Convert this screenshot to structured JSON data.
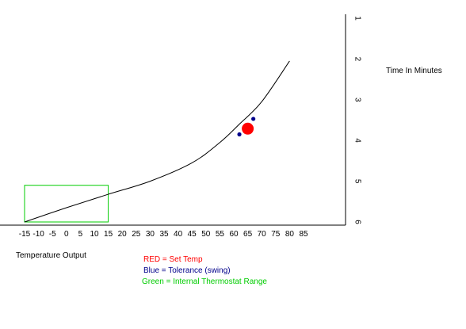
{
  "chart_data": {
    "type": "line",
    "xlabel": "Temperature Output",
    "ylabel": "Time In Minutes",
    "x_ticks": [
      "-15",
      "-10",
      "-5",
      "0",
      "5",
      "10",
      "15",
      "20",
      "25",
      "30",
      "35",
      "40",
      "45",
      "50",
      "55",
      "60",
      "65",
      "70",
      "75",
      "80",
      "85"
    ],
    "y_ticks": [
      "1",
      "2",
      "3",
      "4",
      "5",
      "6"
    ],
    "y_inverted": true,
    "curve": {
      "x": [
        -15,
        0,
        15,
        30,
        45,
        55,
        62,
        70,
        80
      ],
      "y": [
        6.0,
        5.65,
        5.32,
        5.0,
        4.55,
        4.05,
        3.6,
        3.05,
        2.05
      ]
    },
    "set_temp": {
      "x": 65,
      "y": 3.71,
      "color": "#ff0000"
    },
    "tolerance": [
      {
        "x": 62,
        "y": 3.85
      },
      {
        "x": 67,
        "y": 3.47
      }
    ],
    "tolerance_color": "#00008b",
    "thermostat_range": {
      "x_min": -15,
      "x_max": 15,
      "y_min": 5.1,
      "y_max": 6.0,
      "color": "#00cc00"
    }
  },
  "legend": {
    "red": "RED = Set Temp",
    "blue": "Blue = Tolerance (swing)",
    "green": "Green = Internal Thermostat Range",
    "red_color": "#ff0000",
    "blue_color": "#00008b",
    "green_color": "#00cc00"
  }
}
